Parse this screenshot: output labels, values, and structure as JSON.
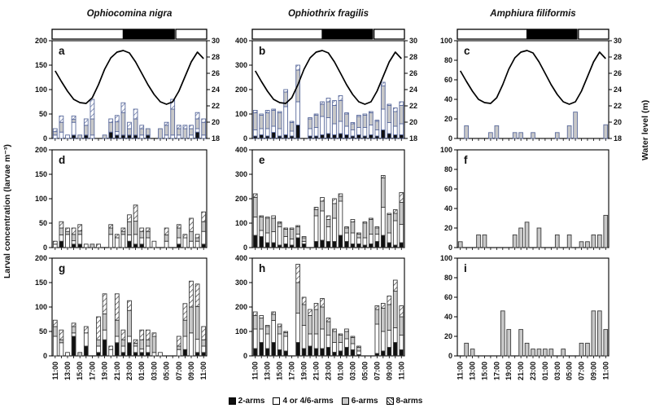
{
  "figure": {
    "y_axis_label": "Larval concentration (larvae m⁻³)",
    "right_axis_label": "Water level (m)",
    "legend": [
      {
        "swatch": "black",
        "label": "2-arms"
      },
      {
        "swatch": "white",
        "label": "4 or 4/6-arms"
      },
      {
        "swatch": "gray",
        "label": "6-arms"
      },
      {
        "swatch": "hatch",
        "label": "8-arms"
      }
    ]
  },
  "chart_data": {
    "type": "bar",
    "stacked": true,
    "hours": [
      "11:00",
      "12:00",
      "13:00",
      "14:00",
      "15:00",
      "16:00",
      "17:00",
      "18:00",
      "19:00",
      "20:00",
      "21:00",
      "22:00",
      "23:00",
      "00:00",
      "01:00",
      "02:00",
      "03:00",
      "04:00",
      "05:00",
      "06:00",
      "07:00",
      "08:00",
      "09:00",
      "10:00",
      "11:00"
    ],
    "x_tick_labels": [
      "11:00",
      "13:00",
      "15:00",
      "17:00",
      "19:00",
      "21:00",
      "23:00",
      "01:00",
      "03:00",
      "05:00",
      "07:00",
      "09:00",
      "11:00"
    ],
    "series_names": [
      "2-arms",
      "4 or 4/6-arms",
      "6-arms",
      "8-arms"
    ],
    "columns": [
      {
        "title": "Ophiocomina nigra",
        "ylim": [
          0,
          200
        ],
        "yticks": [
          0,
          50,
          100,
          150,
          200
        ]
      },
      {
        "title": "Ophiothrix fragilis",
        "ylim": [
          0,
          400
        ],
        "yticks": [
          0,
          100,
          200,
          300,
          400
        ]
      },
      {
        "title": "Amphiura filiformis",
        "ylim": [
          0,
          100
        ],
        "yticks": [
          0,
          20,
          40,
          60,
          80,
          100
        ]
      }
    ],
    "day_night_segments": [
      {
        "from": 0.0,
        "to": 0.46,
        "phase": "day"
      },
      {
        "from": 0.465,
        "to": 0.79,
        "phase": "night"
      },
      {
        "from": 0.8,
        "to": 1.0,
        "phase": "day"
      }
    ],
    "water_level": {
      "ylim": [
        18,
        30
      ],
      "yticks": [
        18,
        20,
        22,
        24,
        26,
        28,
        30
      ],
      "values": [
        26.3,
        25.0,
        23.8,
        22.8,
        22.4,
        22.3,
        23.0,
        24.6,
        26.5,
        27.9,
        28.6,
        28.8,
        28.5,
        27.4,
        26.0,
        24.6,
        23.4,
        22.5,
        22.2,
        22.5,
        23.8,
        25.6,
        27.4,
        28.6,
        27.8
      ]
    },
    "panels": [
      {
        "id": "a",
        "col": 0,
        "row": 0,
        "tide": true,
        "stacks": {
          "arms2": [
            0,
            0,
            0,
            7,
            0,
            7,
            0,
            0,
            0,
            13,
            7,
            7,
            7,
            7,
            0,
            7,
            0,
            0,
            0,
            0,
            0,
            0,
            0,
            13,
            0
          ],
          "arms4": [
            7,
            13,
            7,
            26,
            0,
            0,
            7,
            0,
            0,
            0,
            7,
            0,
            0,
            0,
            7,
            0,
            0,
            0,
            7,
            7,
            7,
            0,
            7,
            7,
            7
          ],
          "arms6": [
            7,
            20,
            0,
            6,
            7,
            20,
            33,
            0,
            7,
            20,
            20,
            46,
            13,
            33,
            13,
            13,
            0,
            20,
            20,
            53,
            13,
            20,
            13,
            20,
            26
          ],
          "arms8": [
            6,
            13,
            0,
            7,
            0,
            13,
            40,
            0,
            0,
            7,
            13,
            20,
            13,
            20,
            7,
            0,
            0,
            0,
            6,
            20,
            7,
            7,
            7,
            13,
            7
          ]
        }
      },
      {
        "id": "b",
        "col": 1,
        "row": 0,
        "tide": true,
        "stacks": {
          "arms2": [
            10,
            15,
            10,
            25,
            10,
            15,
            10,
            55,
            0,
            10,
            10,
            15,
            20,
            15,
            20,
            15,
            10,
            15,
            10,
            15,
            10,
            35,
            20,
            15,
            15
          ],
          "arms4": [
            25,
            25,
            30,
            25,
            30,
            115,
            20,
            95,
            0,
            30,
            35,
            75,
            65,
            45,
            50,
            35,
            25,
            30,
            35,
            40,
            25,
            85,
            45,
            35,
            45
          ],
          "arms6": [
            70,
            55,
            65,
            65,
            65,
            60,
            35,
            130,
            0,
            40,
            50,
            50,
            65,
            75,
            85,
            50,
            25,
            45,
            50,
            50,
            35,
            95,
            70,
            60,
            75
          ],
          "arms8": [
            10,
            5,
            10,
            5,
            5,
            10,
            5,
            20,
            0,
            5,
            5,
            10,
            15,
            20,
            20,
            5,
            5,
            5,
            5,
            5,
            5,
            15,
            5,
            15,
            15
          ]
        }
      },
      {
        "id": "c",
        "col": 2,
        "row": 0,
        "tide": true,
        "stacks": {
          "arms6": [
            0,
            13,
            0,
            0,
            0,
            6,
            13,
            0,
            0,
            6,
            6,
            0,
            6,
            0,
            0,
            0,
            6,
            0,
            13,
            27,
            0,
            0,
            0,
            0,
            14
          ]
        }
      },
      {
        "id": "d",
        "col": 0,
        "row": 1,
        "stacks": {
          "arms2": [
            0,
            13,
            0,
            7,
            7,
            0,
            0,
            0,
            0,
            0,
            0,
            0,
            13,
            7,
            7,
            0,
            0,
            0,
            0,
            0,
            7,
            0,
            0,
            0,
            7
          ],
          "arms4": [
            7,
            13,
            27,
            7,
            20,
            7,
            0,
            0,
            0,
            27,
            20,
            27,
            13,
            20,
            13,
            20,
            13,
            0,
            13,
            0,
            13,
            20,
            13,
            13,
            26
          ],
          "arms6": [
            0,
            14,
            6,
            13,
            7,
            0,
            7,
            0,
            0,
            13,
            0,
            6,
            27,
            27,
            13,
            13,
            0,
            0,
            13,
            0,
            20,
            0,
            20,
            7,
            20
          ],
          "arms8": [
            6,
            13,
            7,
            13,
            13,
            0,
            0,
            7,
            0,
            7,
            7,
            7,
            14,
            33,
            7,
            7,
            0,
            0,
            14,
            0,
            7,
            7,
            27,
            7,
            20
          ]
        }
      },
      {
        "id": "e",
        "col": 1,
        "row": 1,
        "stacks": {
          "arms2": [
            50,
            45,
            20,
            20,
            10,
            15,
            10,
            40,
            15,
            0,
            25,
            30,
            25,
            25,
            50,
            25,
            15,
            15,
            10,
            15,
            25,
            50,
            20,
            10,
            20
          ],
          "arms4": [
            75,
            25,
            40,
            45,
            75,
            30,
            25,
            15,
            10,
            0,
            105,
            120,
            60,
            95,
            140,
            35,
            45,
            25,
            30,
            40,
            30,
            115,
            40,
            100,
            75
          ],
          "arms6": [
            80,
            55,
            60,
            55,
            15,
            30,
            40,
            30,
            15,
            0,
            25,
            40,
            30,
            60,
            20,
            20,
            45,
            15,
            60,
            60,
            25,
            120,
            75,
            30,
            90
          ],
          "arms8": [
            15,
            5,
            5,
            10,
            5,
            5,
            5,
            5,
            5,
            0,
            10,
            15,
            15,
            20,
            10,
            5,
            10,
            5,
            5,
            5,
            5,
            10,
            5,
            15,
            40
          ]
        }
      },
      {
        "id": "f",
        "col": 2,
        "row": 1,
        "stacks": {
          "arms6": [
            6,
            0,
            0,
            13,
            13,
            0,
            0,
            0,
            0,
            13,
            20,
            26,
            0,
            20,
            0,
            0,
            13,
            0,
            13,
            0,
            6,
            6,
            13,
            13,
            33
          ]
        }
      },
      {
        "id": "g",
        "col": 0,
        "row": 2,
        "stacks": {
          "arms2": [
            0,
            0,
            0,
            40,
            0,
            20,
            0,
            7,
            33,
            0,
            27,
            7,
            27,
            7,
            7,
            7,
            0,
            0,
            0,
            0,
            0,
            13,
            0,
            7,
            7
          ],
          "arms4": [
            40,
            27,
            7,
            7,
            0,
            27,
            0,
            13,
            20,
            13,
            13,
            13,
            13,
            13,
            7,
            13,
            7,
            7,
            0,
            0,
            13,
            27,
            47,
            27,
            13
          ],
          "arms6": [
            20,
            6,
            0,
            13,
            7,
            0,
            0,
            13,
            33,
            0,
            33,
            13,
            53,
            6,
            19,
            13,
            33,
            0,
            0,
            0,
            7,
            33,
            53,
            67,
            13
          ],
          "arms8": [
            13,
            20,
            0,
            7,
            0,
            13,
            0,
            47,
            41,
            7,
            54,
            20,
            20,
            7,
            20,
            20,
            7,
            0,
            0,
            0,
            20,
            34,
            53,
            46,
            27
          ]
        }
      },
      {
        "id": "h",
        "col": 1,
        "row": 2,
        "stacks": {
          "arms2": [
            30,
            55,
            30,
            55,
            25,
            20,
            0,
            55,
            30,
            40,
            30,
            30,
            35,
            15,
            20,
            35,
            25,
            5,
            0,
            0,
            10,
            20,
            35,
            55,
            25
          ],
          "arms4": [
            80,
            55,
            60,
            90,
            65,
            60,
            0,
            120,
            95,
            50,
            60,
            80,
            50,
            40,
            35,
            35,
            25,
            15,
            0,
            0,
            120,
            80,
            70,
            60,
            60
          ],
          "arms6": [
            55,
            45,
            30,
            25,
            30,
            15,
            0,
            125,
            85,
            75,
            100,
            90,
            55,
            45,
            30,
            30,
            25,
            15,
            0,
            0,
            60,
            95,
            105,
            150,
            75
          ],
          "arms8": [
            15,
            10,
            5,
            10,
            10,
            5,
            0,
            75,
            30,
            25,
            25,
            35,
            15,
            10,
            5,
            10,
            5,
            5,
            0,
            0,
            15,
            20,
            35,
            45,
            45
          ]
        }
      },
      {
        "id": "i",
        "col": 2,
        "row": 2,
        "stacks": {
          "arms6": [
            0,
            13,
            7,
            0,
            0,
            0,
            0,
            46,
            27,
            0,
            27,
            13,
            7,
            7,
            7,
            7,
            0,
            7,
            0,
            0,
            13,
            13,
            46,
            46,
            27
          ]
        }
      }
    ],
    "colors": {
      "row1_stroke": "#5a6a9c",
      "dark_stroke": "#3a3a3a",
      "gray_fill": "#c8c8c8",
      "black_fill": "#101010",
      "white_fill": "#ffffff",
      "curve": "#000000"
    }
  }
}
